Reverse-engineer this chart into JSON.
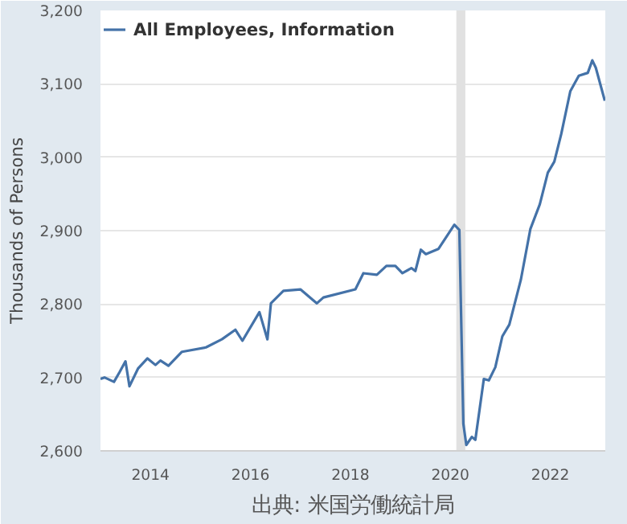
{
  "chart_data": {
    "type": "line",
    "ylabel": "Thousands of Persons",
    "annotations": [
      "出典: 米国労働統計局"
    ],
    "x": [
      2013.0,
      2013.08,
      2013.27,
      2013.38,
      2013.5,
      2013.58,
      2013.75,
      2013.94,
      2014.1,
      2014.2,
      2014.36,
      2014.63,
      2015.11,
      2015.43,
      2015.7,
      2015.84,
      2016.18,
      2016.34,
      2016.41,
      2016.66,
      2017.0,
      2017.33,
      2017.46,
      2018.1,
      2018.26,
      2018.53,
      2018.72,
      2018.9,
      2019.04,
      2019.22,
      2019.3,
      2019.41,
      2019.51,
      2019.76,
      2020.08,
      2020.18,
      2020.26,
      2020.32,
      2020.43,
      2020.5,
      2020.67,
      2020.77,
      2020.9,
      2021.04,
      2021.18,
      2021.41,
      2021.6,
      2021.79,
      2021.95,
      2022.08,
      2022.22,
      2022.4,
      2022.57,
      2022.75,
      2022.84,
      2022.91,
      2023.09
    ],
    "series": [
      {
        "name": "All Employees, Information",
        "color": "#4472a8",
        "values": [
          2698,
          2700,
          2694,
          2707,
          2722,
          2688,
          2712,
          2726,
          2717,
          2723,
          2716,
          2735,
          2741,
          2752,
          2765,
          2750,
          2789,
          2752,
          2801,
          2818,
          2820,
          2801,
          2809,
          2820,
          2842,
          2840,
          2852,
          2852,
          2842,
          2849,
          2845,
          2874,
          2868,
          2875,
          2908,
          2901,
          2637,
          2608,
          2619,
          2615,
          2698,
          2696,
          2714,
          2756,
          2772,
          2833,
          2902,
          2936,
          2979,
          2994,
          3032,
          3090,
          3111,
          3115,
          3132,
          3122,
          3077
        ]
      }
    ],
    "xlim": [
      2013.0,
      2023.1
    ],
    "xticks": [
      2014,
      2016,
      2018,
      2020,
      2022
    ],
    "ylim": [
      2600,
      3200
    ],
    "yticks": [
      {
        "value": 2600,
        "label": "2,600"
      },
      {
        "value": 2700,
        "label": "2,700"
      },
      {
        "value": 2800,
        "label": "2,800"
      },
      {
        "value": 2900,
        "label": "2,900"
      },
      {
        "value": 3000,
        "label": "3,000"
      },
      {
        "value": 3100,
        "label": "3,100"
      },
      {
        "value": 3200,
        "label": "3,200"
      }
    ],
    "bands": [
      {
        "axis": "x",
        "from": 2020.12,
        "to": 2020.3,
        "color": "#e1e1e1"
      }
    ],
    "grid": "y",
    "legend": "top left",
    "line_style": "solid"
  }
}
